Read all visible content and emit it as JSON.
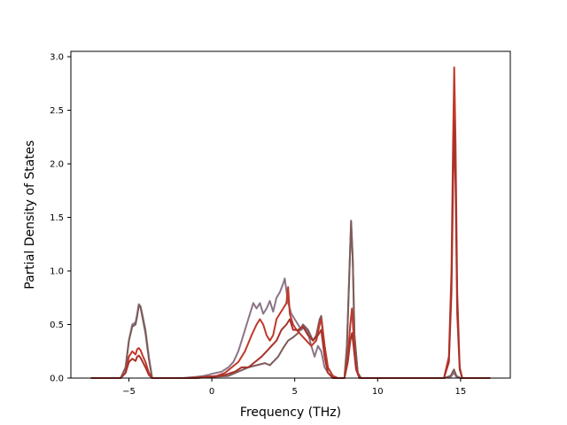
{
  "chart_data": {
    "type": "line",
    "xlabel": "Frequency (THz)",
    "ylabel": "Partial Density of States",
    "xlim": [
      -8.5,
      18.0
    ],
    "ylim": [
      0.0,
      3.05
    ],
    "xticks": [
      -5,
      0,
      5,
      10,
      15
    ],
    "yticks": [
      0.0,
      0.5,
      1.0,
      1.5,
      2.0,
      2.5,
      3.0
    ],
    "xtick_labels": [
      "−5",
      "0",
      "5",
      "10",
      "15"
    ],
    "ytick_labels": [
      "0.0",
      "0.5",
      "1.0",
      "1.5",
      "2.0",
      "2.5",
      "3.0"
    ],
    "grid": false,
    "legend": "none",
    "series": [
      {
        "color": "#8a7588",
        "points": [
          [
            -7.3,
            0
          ],
          [
            -5.5,
            0
          ],
          [
            -5.2,
            0.1
          ],
          [
            -5.0,
            0.35
          ],
          [
            -4.8,
            0.5
          ],
          [
            -4.6,
            0.52
          ],
          [
            -4.5,
            0.6
          ],
          [
            -4.4,
            0.69
          ],
          [
            -4.3,
            0.67
          ],
          [
            -4.2,
            0.6
          ],
          [
            -4.0,
            0.45
          ],
          [
            -3.8,
            0.2
          ],
          [
            -3.6,
            0
          ],
          [
            -1.8,
            0
          ],
          [
            -1.0,
            0.01
          ],
          [
            -0.5,
            0.02
          ],
          [
            -0.2,
            0.03
          ],
          [
            0.0,
            0.04
          ],
          [
            0.3,
            0.05
          ],
          [
            0.6,
            0.06
          ],
          [
            1.0,
            0.1
          ],
          [
            1.3,
            0.15
          ],
          [
            1.6,
            0.25
          ],
          [
            1.9,
            0.4
          ],
          [
            2.1,
            0.5
          ],
          [
            2.3,
            0.6
          ],
          [
            2.5,
            0.7
          ],
          [
            2.7,
            0.65
          ],
          [
            2.9,
            0.7
          ],
          [
            3.1,
            0.6
          ],
          [
            3.3,
            0.65
          ],
          [
            3.5,
            0.72
          ],
          [
            3.7,
            0.62
          ],
          [
            3.9,
            0.75
          ],
          [
            4.1,
            0.8
          ],
          [
            4.3,
            0.88
          ],
          [
            4.4,
            0.93
          ],
          [
            4.6,
            0.7
          ],
          [
            4.8,
            0.6
          ],
          [
            5.0,
            0.55
          ],
          [
            5.2,
            0.5
          ],
          [
            5.4,
            0.45
          ],
          [
            5.6,
            0.48
          ],
          [
            5.8,
            0.42
          ],
          [
            6.0,
            0.3
          ],
          [
            6.2,
            0.2
          ],
          [
            6.4,
            0.3
          ],
          [
            6.6,
            0.25
          ],
          [
            6.8,
            0.1
          ],
          [
            7.0,
            0.05
          ],
          [
            7.2,
            0.02
          ],
          [
            7.6,
            0
          ],
          [
            8.0,
            0
          ],
          [
            8.15,
            0.3
          ],
          [
            8.3,
            1.0
          ],
          [
            8.4,
            1.45
          ],
          [
            8.5,
            1.1
          ],
          [
            8.6,
            0.4
          ],
          [
            8.8,
            0.05
          ],
          [
            9.0,
            0
          ],
          [
            14.0,
            0
          ],
          [
            14.4,
            0.01
          ],
          [
            14.6,
            0.05
          ],
          [
            14.75,
            0.01
          ],
          [
            15.0,
            0
          ],
          [
            16.8,
            0
          ]
        ]
      },
      {
        "color": "#7d5c5a",
        "points": [
          [
            -7.3,
            0
          ],
          [
            -5.5,
            0
          ],
          [
            -5.2,
            0.1
          ],
          [
            -5.0,
            0.35
          ],
          [
            -4.8,
            0.48
          ],
          [
            -4.6,
            0.5
          ],
          [
            -4.5,
            0.58
          ],
          [
            -4.4,
            0.68
          ],
          [
            -4.3,
            0.66
          ],
          [
            -4.2,
            0.58
          ],
          [
            -4.0,
            0.42
          ],
          [
            -3.8,
            0.18
          ],
          [
            -3.6,
            0
          ],
          [
            -1.0,
            0
          ],
          [
            0.0,
            0.01
          ],
          [
            1.0,
            0.02
          ],
          [
            1.6,
            0.06
          ],
          [
            2.2,
            0.1
          ],
          [
            2.7,
            0.12
          ],
          [
            3.2,
            0.14
          ],
          [
            3.5,
            0.12
          ],
          [
            4.0,
            0.2
          ],
          [
            4.3,
            0.28
          ],
          [
            4.6,
            0.35
          ],
          [
            4.9,
            0.38
          ],
          [
            5.2,
            0.42
          ],
          [
            5.5,
            0.5
          ],
          [
            5.8,
            0.45
          ],
          [
            6.1,
            0.35
          ],
          [
            6.3,
            0.4
          ],
          [
            6.5,
            0.55
          ],
          [
            6.6,
            0.58
          ],
          [
            6.8,
            0.3
          ],
          [
            7.0,
            0.1
          ],
          [
            7.3,
            0.02
          ],
          [
            7.6,
            0
          ],
          [
            8.0,
            0
          ],
          [
            8.15,
            0.3
          ],
          [
            8.3,
            1.0
          ],
          [
            8.4,
            1.47
          ],
          [
            8.5,
            1.1
          ],
          [
            8.6,
            0.4
          ],
          [
            8.8,
            0.05
          ],
          [
            9.0,
            0
          ],
          [
            14.0,
            0
          ],
          [
            14.4,
            0.02
          ],
          [
            14.6,
            0.08
          ],
          [
            14.75,
            0.02
          ],
          [
            15.0,
            0
          ],
          [
            16.8,
            0
          ]
        ]
      },
      {
        "color": "#c0392b",
        "points": [
          [
            -7.3,
            0
          ],
          [
            -5.5,
            0
          ],
          [
            -5.2,
            0.05
          ],
          [
            -5.0,
            0.2
          ],
          [
            -4.8,
            0.25
          ],
          [
            -4.6,
            0.22
          ],
          [
            -4.5,
            0.27
          ],
          [
            -4.4,
            0.28
          ],
          [
            -4.3,
            0.26
          ],
          [
            -4.2,
            0.22
          ],
          [
            -4.0,
            0.15
          ],
          [
            -3.8,
            0.05
          ],
          [
            -3.6,
            0
          ],
          [
            -1.5,
            0
          ],
          [
            -0.5,
            0.01
          ],
          [
            0.3,
            0.02
          ],
          [
            0.8,
            0.05
          ],
          [
            1.2,
            0.1
          ],
          [
            1.6,
            0.15
          ],
          [
            2.0,
            0.25
          ],
          [
            2.4,
            0.4
          ],
          [
            2.7,
            0.5
          ],
          [
            2.9,
            0.55
          ],
          [
            3.1,
            0.5
          ],
          [
            3.3,
            0.4
          ],
          [
            3.5,
            0.35
          ],
          [
            3.7,
            0.4
          ],
          [
            3.9,
            0.55
          ],
          [
            4.1,
            0.6
          ],
          [
            4.3,
            0.65
          ],
          [
            4.5,
            0.7
          ],
          [
            4.6,
            0.85
          ],
          [
            4.7,
            0.6
          ],
          [
            4.9,
            0.5
          ],
          [
            5.1,
            0.45
          ],
          [
            5.4,
            0.4
          ],
          [
            5.7,
            0.35
          ],
          [
            6.0,
            0.3
          ],
          [
            6.3,
            0.35
          ],
          [
            6.5,
            0.5
          ],
          [
            6.6,
            0.55
          ],
          [
            6.8,
            0.3
          ],
          [
            7.0,
            0.1
          ],
          [
            7.3,
            0.02
          ],
          [
            7.6,
            0
          ],
          [
            8.0,
            0
          ],
          [
            8.2,
            0.2
          ],
          [
            8.35,
            0.5
          ],
          [
            8.45,
            0.65
          ],
          [
            8.55,
            0.4
          ],
          [
            8.7,
            0.1
          ],
          [
            8.9,
            0
          ],
          [
            14.0,
            0
          ],
          [
            14.3,
            0.2
          ],
          [
            14.45,
            1.0
          ],
          [
            14.55,
            2.2
          ],
          [
            14.62,
            2.9
          ],
          [
            14.7,
            2.2
          ],
          [
            14.8,
            0.8
          ],
          [
            14.95,
            0.1
          ],
          [
            15.1,
            0
          ],
          [
            16.8,
            0
          ]
        ]
      },
      {
        "color": "#a8322a",
        "points": [
          [
            -7.3,
            0
          ],
          [
            -5.5,
            0
          ],
          [
            -5.2,
            0.05
          ],
          [
            -5.0,
            0.15
          ],
          [
            -4.8,
            0.18
          ],
          [
            -4.6,
            0.16
          ],
          [
            -4.5,
            0.2
          ],
          [
            -4.4,
            0.21
          ],
          [
            -4.3,
            0.19
          ],
          [
            -4.2,
            0.16
          ],
          [
            -4.0,
            0.1
          ],
          [
            -3.8,
            0.03
          ],
          [
            -3.6,
            0
          ],
          [
            -1.0,
            0
          ],
          [
            0.0,
            0.01
          ],
          [
            0.8,
            0.03
          ],
          [
            1.4,
            0.06
          ],
          [
            1.8,
            0.1
          ],
          [
            2.2,
            0.1
          ],
          [
            2.6,
            0.15
          ],
          [
            3.0,
            0.2
          ],
          [
            3.3,
            0.25
          ],
          [
            3.6,
            0.3
          ],
          [
            3.9,
            0.35
          ],
          [
            4.2,
            0.45
          ],
          [
            4.5,
            0.5
          ],
          [
            4.7,
            0.55
          ],
          [
            4.9,
            0.45
          ],
          [
            5.2,
            0.45
          ],
          [
            5.5,
            0.48
          ],
          [
            5.8,
            0.4
          ],
          [
            6.1,
            0.35
          ],
          [
            6.4,
            0.4
          ],
          [
            6.6,
            0.45
          ],
          [
            6.8,
            0.2
          ],
          [
            7.0,
            0.05
          ],
          [
            7.3,
            0
          ],
          [
            8.0,
            0
          ],
          [
            8.2,
            0.15
          ],
          [
            8.35,
            0.35
          ],
          [
            8.45,
            0.42
          ],
          [
            8.55,
            0.3
          ],
          [
            8.7,
            0.08
          ],
          [
            8.9,
            0
          ],
          [
            14.0,
            0
          ],
          [
            14.3,
            0.15
          ],
          [
            14.45,
            0.8
          ],
          [
            14.55,
            1.8
          ],
          [
            14.62,
            2.4
          ],
          [
            14.7,
            1.8
          ],
          [
            14.8,
            0.6
          ],
          [
            14.95,
            0.08
          ],
          [
            15.1,
            0
          ],
          [
            16.8,
            0
          ]
        ]
      }
    ]
  }
}
